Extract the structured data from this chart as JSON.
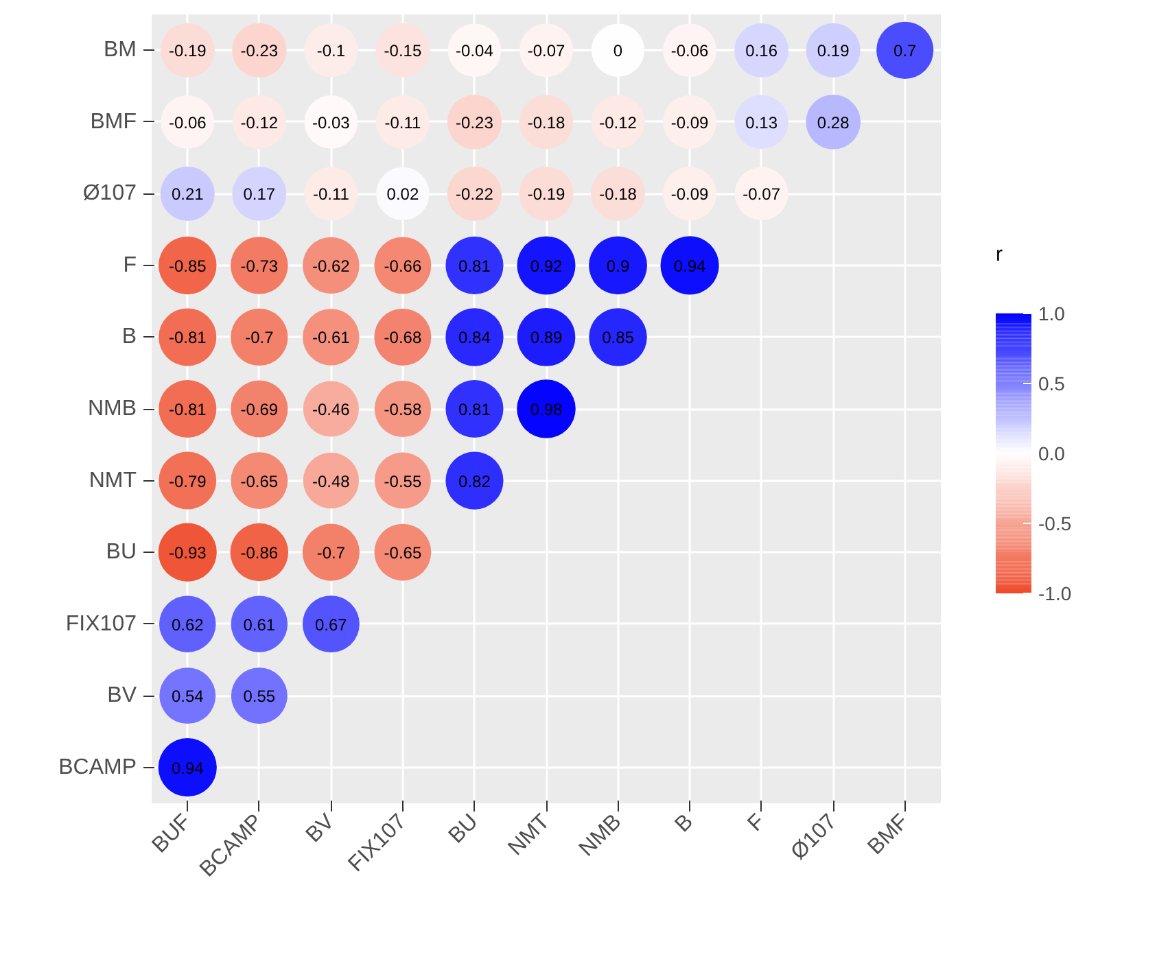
{
  "chart_data": {
    "type": "heatmap",
    "clabel": "r",
    "categories": [
      "BUF",
      "BCAMP",
      "BV",
      "FIX107",
      "BU",
      "NMT",
      "NMB",
      "B",
      "F",
      "Ø107",
      "BMF"
    ],
    "y_categories": [
      "BM",
      "BMF",
      "Ø107",
      "F",
      "B",
      "NMB",
      "NMT",
      "BU",
      "FIX107",
      "BV",
      "BCAMP"
    ],
    "cells": [
      [
        -0.19,
        -0.23,
        -0.1,
        -0.15,
        -0.04,
        -0.07,
        0,
        -0.06,
        0.16,
        0.19,
        0.7
      ],
      [
        -0.06,
        -0.12,
        -0.03,
        -0.11,
        -0.23,
        -0.18,
        -0.12,
        -0.09,
        0.13,
        0.28,
        null
      ],
      [
        0.21,
        0.17,
        -0.11,
        0.02,
        -0.22,
        -0.19,
        -0.18,
        -0.09,
        -0.07,
        null,
        null
      ],
      [
        -0.85,
        -0.73,
        -0.62,
        -0.66,
        0.81,
        0.92,
        0.9,
        0.94,
        null,
        null,
        null
      ],
      [
        -0.81,
        -0.7,
        -0.61,
        -0.68,
        0.84,
        0.89,
        0.85,
        null,
        null,
        null,
        null
      ],
      [
        -0.81,
        -0.69,
        -0.46,
        -0.58,
        0.81,
        0.98,
        null,
        null,
        null,
        null,
        null
      ],
      [
        -0.79,
        -0.65,
        -0.48,
        -0.55,
        0.82,
        null,
        null,
        null,
        null,
        null,
        null
      ],
      [
        -0.93,
        -0.86,
        -0.7,
        -0.65,
        null,
        null,
        null,
        null,
        null,
        null,
        null
      ],
      [
        0.62,
        0.61,
        0.67,
        null,
        null,
        null,
        null,
        null,
        null,
        null,
        null
      ],
      [
        0.54,
        0.55,
        null,
        null,
        null,
        null,
        null,
        null,
        null,
        null,
        null
      ],
      [
        0.94,
        null,
        null,
        null,
        null,
        null,
        null,
        null,
        null,
        null,
        null
      ]
    ],
    "colors": [
      "#ee4b2b",
      "#ffffff",
      "#0000ff"
    ],
    "clim": [
      -1,
      1
    ],
    "cticks": [
      {
        "value": -1,
        "label": "-1.0"
      },
      {
        "value": -0.5,
        "label": "-0.5"
      },
      {
        "value": 0,
        "label": "0.0"
      },
      {
        "value": 0.5,
        "label": "0.5"
      },
      {
        "value": 1,
        "label": "1.0"
      }
    ],
    "data_labels": true,
    "grid": true
  }
}
